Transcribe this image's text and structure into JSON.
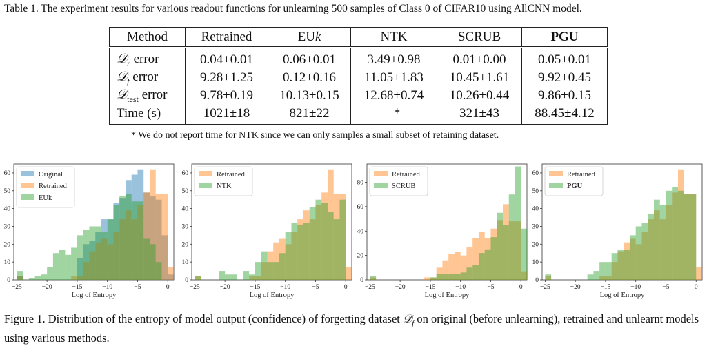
{
  "table": {
    "caption": "Table 1. The experiment results for various readout functions for unlearning 500 samples of Class 0 of CIFAR10 using AllCNN model.",
    "headers": [
      "Method",
      "Retrained",
      "EUk",
      "NTK",
      "SCRUB",
      "PGU"
    ],
    "rows": [
      {
        "label": "𝒟r error",
        "values": [
          "0.04±0.01",
          "0.06±0.01",
          "3.49±0.98",
          "0.01±0.00",
          "0.05±0.01"
        ]
      },
      {
        "label": "𝒟f error",
        "values": [
          "9.28±1.25",
          "0.12±0.16",
          "11.05±1.83",
          "10.45±1.61",
          "9.92±0.45"
        ]
      },
      {
        "label": "𝒟test error",
        "values": [
          "9.78±0.19",
          "10.13±0.15",
          "12.68±0.74",
          "10.26±0.44",
          "9.86±0.15"
        ]
      },
      {
        "label": "Time (s)",
        "values": [
          "1021±18",
          "821±22",
          "–*",
          "321±43",
          "88.45±4.12"
        ]
      }
    ],
    "footnote": "* We do not report time for NTK since we can only samples a small subset of retaining dataset."
  },
  "figure_caption": "Figure 1. Distribution of the entropy of model output (confidence) of forgetting dataset 𝒟f on original (before unlearning), retrained and unlearnt models using various methods.",
  "colors": {
    "blue": "#1f77b4",
    "orange": "#ff7f0e",
    "green": "#2ca02c"
  },
  "chart_data": [
    {
      "type": "bar",
      "xlabel": "Log of Entropy",
      "ylabel": "",
      "xlim": [
        -25.5,
        1
      ],
      "ylim": [
        0,
        65
      ],
      "xticks": [
        -25,
        -20,
        -15,
        -10,
        -5,
        0
      ],
      "yticks": [
        0,
        10,
        20,
        30,
        40,
        50,
        60
      ],
      "bin_edges": [
        -25,
        -24,
        -23,
        -22,
        -21,
        -20,
        -19,
        -18,
        -17,
        -16,
        -15,
        -14,
        -13,
        -12,
        -11,
        -10,
        -9,
        -8,
        -7,
        -6,
        -5,
        -4,
        -3,
        -2,
        -1,
        0
      ],
      "legend": "top-left",
      "series": [
        {
          "name": "Original",
          "color": "blue",
          "values": [
            2,
            0,
            0,
            0,
            0,
            0,
            0,
            0,
            0,
            0,
            12,
            20,
            22,
            27,
            34,
            34,
            43,
            46,
            56,
            59,
            62,
            49,
            47,
            45,
            25,
            3
          ]
        },
        {
          "name": "Retrained",
          "color": "orange",
          "values": [
            2,
            0,
            0,
            0,
            0,
            0,
            0,
            0,
            0,
            2,
            2,
            10,
            16,
            21,
            23,
            20,
            27,
            34,
            39,
            34,
            42,
            49,
            62,
            48,
            48,
            7
          ]
        },
        {
          "name": "EUk",
          "color": "green",
          "values": [
            5,
            0,
            1,
            2,
            3,
            7,
            15,
            17,
            14,
            18,
            25,
            28,
            30,
            30,
            27,
            34,
            42,
            47,
            48,
            44,
            44,
            23,
            20,
            10,
            0,
            0
          ]
        }
      ]
    },
    {
      "type": "bar",
      "xlabel": "Log of Entropy",
      "ylabel": "",
      "xlim": [
        -25.5,
        1
      ],
      "ylim": [
        0,
        65
      ],
      "xticks": [
        -25,
        -20,
        -15,
        -10,
        -5,
        0
      ],
      "yticks": [
        0,
        10,
        20,
        30,
        40,
        50,
        60
      ],
      "bin_edges": [
        -25,
        -24,
        -23,
        -22,
        -21,
        -20,
        -19,
        -18,
        -17,
        -16,
        -15,
        -14,
        -13,
        -12,
        -11,
        -10,
        -9,
        -8,
        -7,
        -6,
        -5,
        -4,
        -3,
        -2,
        -1,
        0
      ],
      "legend": "top-left",
      "series": [
        {
          "name": "Retrained",
          "color": "orange",
          "values": [
            2,
            0,
            0,
            0,
            0,
            0,
            0,
            0,
            0,
            2,
            2,
            10,
            16,
            21,
            23,
            20,
            27,
            34,
            39,
            34,
            42,
            49,
            62,
            48,
            48,
            7
          ]
        },
        {
          "name": "NTK",
          "color": "green",
          "values": [
            2,
            0,
            0,
            0,
            5,
            3,
            3,
            0,
            5,
            3,
            10,
            16,
            10,
            10,
            15,
            27,
            32,
            31,
            32,
            41,
            45,
            43,
            38,
            34,
            45,
            0
          ]
        }
      ]
    },
    {
      "type": "bar",
      "xlabel": "Log of Entropy",
      "ylabel": "",
      "xlim": [
        -25.5,
        1
      ],
      "ylim": [
        0,
        95
      ],
      "xticks": [
        -25,
        -20,
        -15,
        -10,
        -5,
        0
      ],
      "yticks": [
        0,
        20,
        40,
        60,
        80
      ],
      "bin_edges": [
        -25,
        -24,
        -23,
        -22,
        -21,
        -20,
        -19,
        -18,
        -17,
        -16,
        -15,
        -14,
        -13,
        -12,
        -11,
        -10,
        -9,
        -8,
        -7,
        -6,
        -5,
        -4,
        -3,
        -2,
        -1,
        0
      ],
      "legend": "top-left",
      "series": [
        {
          "name": "Retrained",
          "color": "orange",
          "values": [
            2,
            0,
            0,
            0,
            0,
            0,
            0,
            0,
            0,
            2,
            2,
            10,
            16,
            21,
            23,
            20,
            27,
            34,
            39,
            34,
            42,
            49,
            62,
            48,
            48,
            7
          ]
        },
        {
          "name": "SCRUB",
          "color": "green",
          "values": [
            3,
            0,
            0,
            0,
            0,
            0,
            0,
            0,
            0,
            0,
            2,
            5,
            5,
            5,
            5,
            6,
            10,
            12,
            22,
            25,
            35,
            55,
            45,
            70,
            93,
            42
          ]
        }
      ]
    },
    {
      "type": "bar",
      "xlabel": "Log of Entropy",
      "ylabel": "",
      "xlim": [
        -25.5,
        1
      ],
      "ylim": [
        0,
        65
      ],
      "xticks": [
        -25,
        -20,
        -15,
        -10,
        -5,
        0
      ],
      "yticks": [
        0,
        10,
        20,
        30,
        40,
        50,
        60
      ],
      "bin_edges": [
        -25,
        -24,
        -23,
        -22,
        -21,
        -20,
        -19,
        -18,
        -17,
        -16,
        -15,
        -14,
        -13,
        -12,
        -11,
        -10,
        -9,
        -8,
        -7,
        -6,
        -5,
        -4,
        -3,
        -2,
        -1,
        0
      ],
      "legend": "top-left",
      "series": [
        {
          "name": "Retrained",
          "color": "orange",
          "values": [
            2,
            0,
            0,
            0,
            0,
            0,
            0,
            0,
            0,
            2,
            2,
            10,
            16,
            21,
            23,
            20,
            27,
            34,
            39,
            34,
            42,
            49,
            62,
            48,
            48,
            7
          ]
        },
        {
          "name": "PGU",
          "color": "green",
          "values": [
            3,
            0,
            0,
            0,
            0,
            0,
            0,
            3,
            5,
            10,
            10,
            15,
            17,
            17,
            25,
            30,
            32,
            37,
            45,
            42,
            50,
            52,
            50,
            48,
            48,
            0
          ]
        }
      ]
    }
  ]
}
